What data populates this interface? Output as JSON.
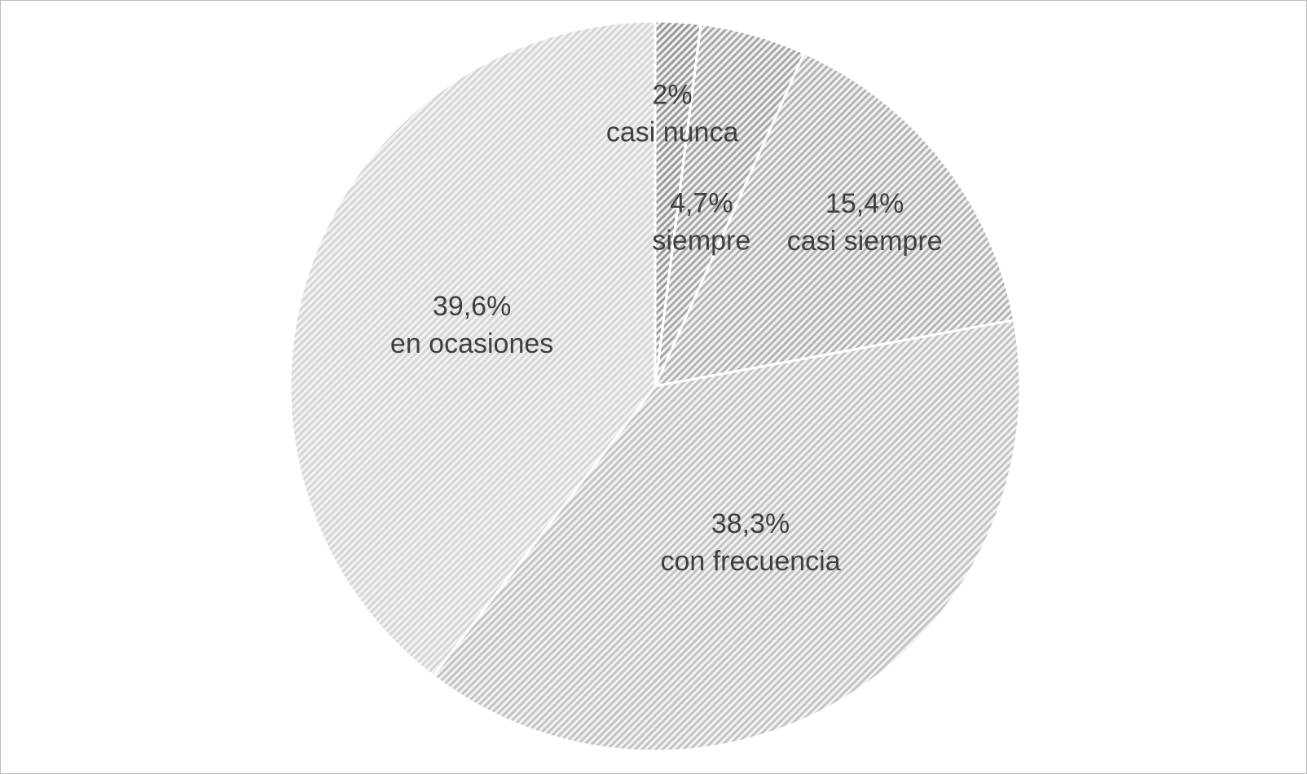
{
  "chart_data": {
    "type": "pie",
    "title": "",
    "slices": [
      {
        "category": "casi nunca",
        "value": 2.0,
        "value_label": "2%",
        "color": "#9a9a9a"
      },
      {
        "category": "siempre",
        "value": 4.7,
        "value_label": "4,7%",
        "color": "#a8a8a8"
      },
      {
        "category": "casi siempre",
        "value": 15.4,
        "value_label": "15,4%",
        "color": "#b4b4b4"
      },
      {
        "category": "con frecuencia",
        "value": 38.3,
        "value_label": "38,3%",
        "color": "#c3c3c3"
      },
      {
        "category": "en ocasiones",
        "value": 39.6,
        "value_label": "39,6%",
        "color": "#d6d6d6"
      }
    ],
    "start_angle": "12 o'clock",
    "direction": "clockwise",
    "fill_style": "diagonal hatch",
    "legend": "none",
    "data_labels": "inside slices"
  }
}
